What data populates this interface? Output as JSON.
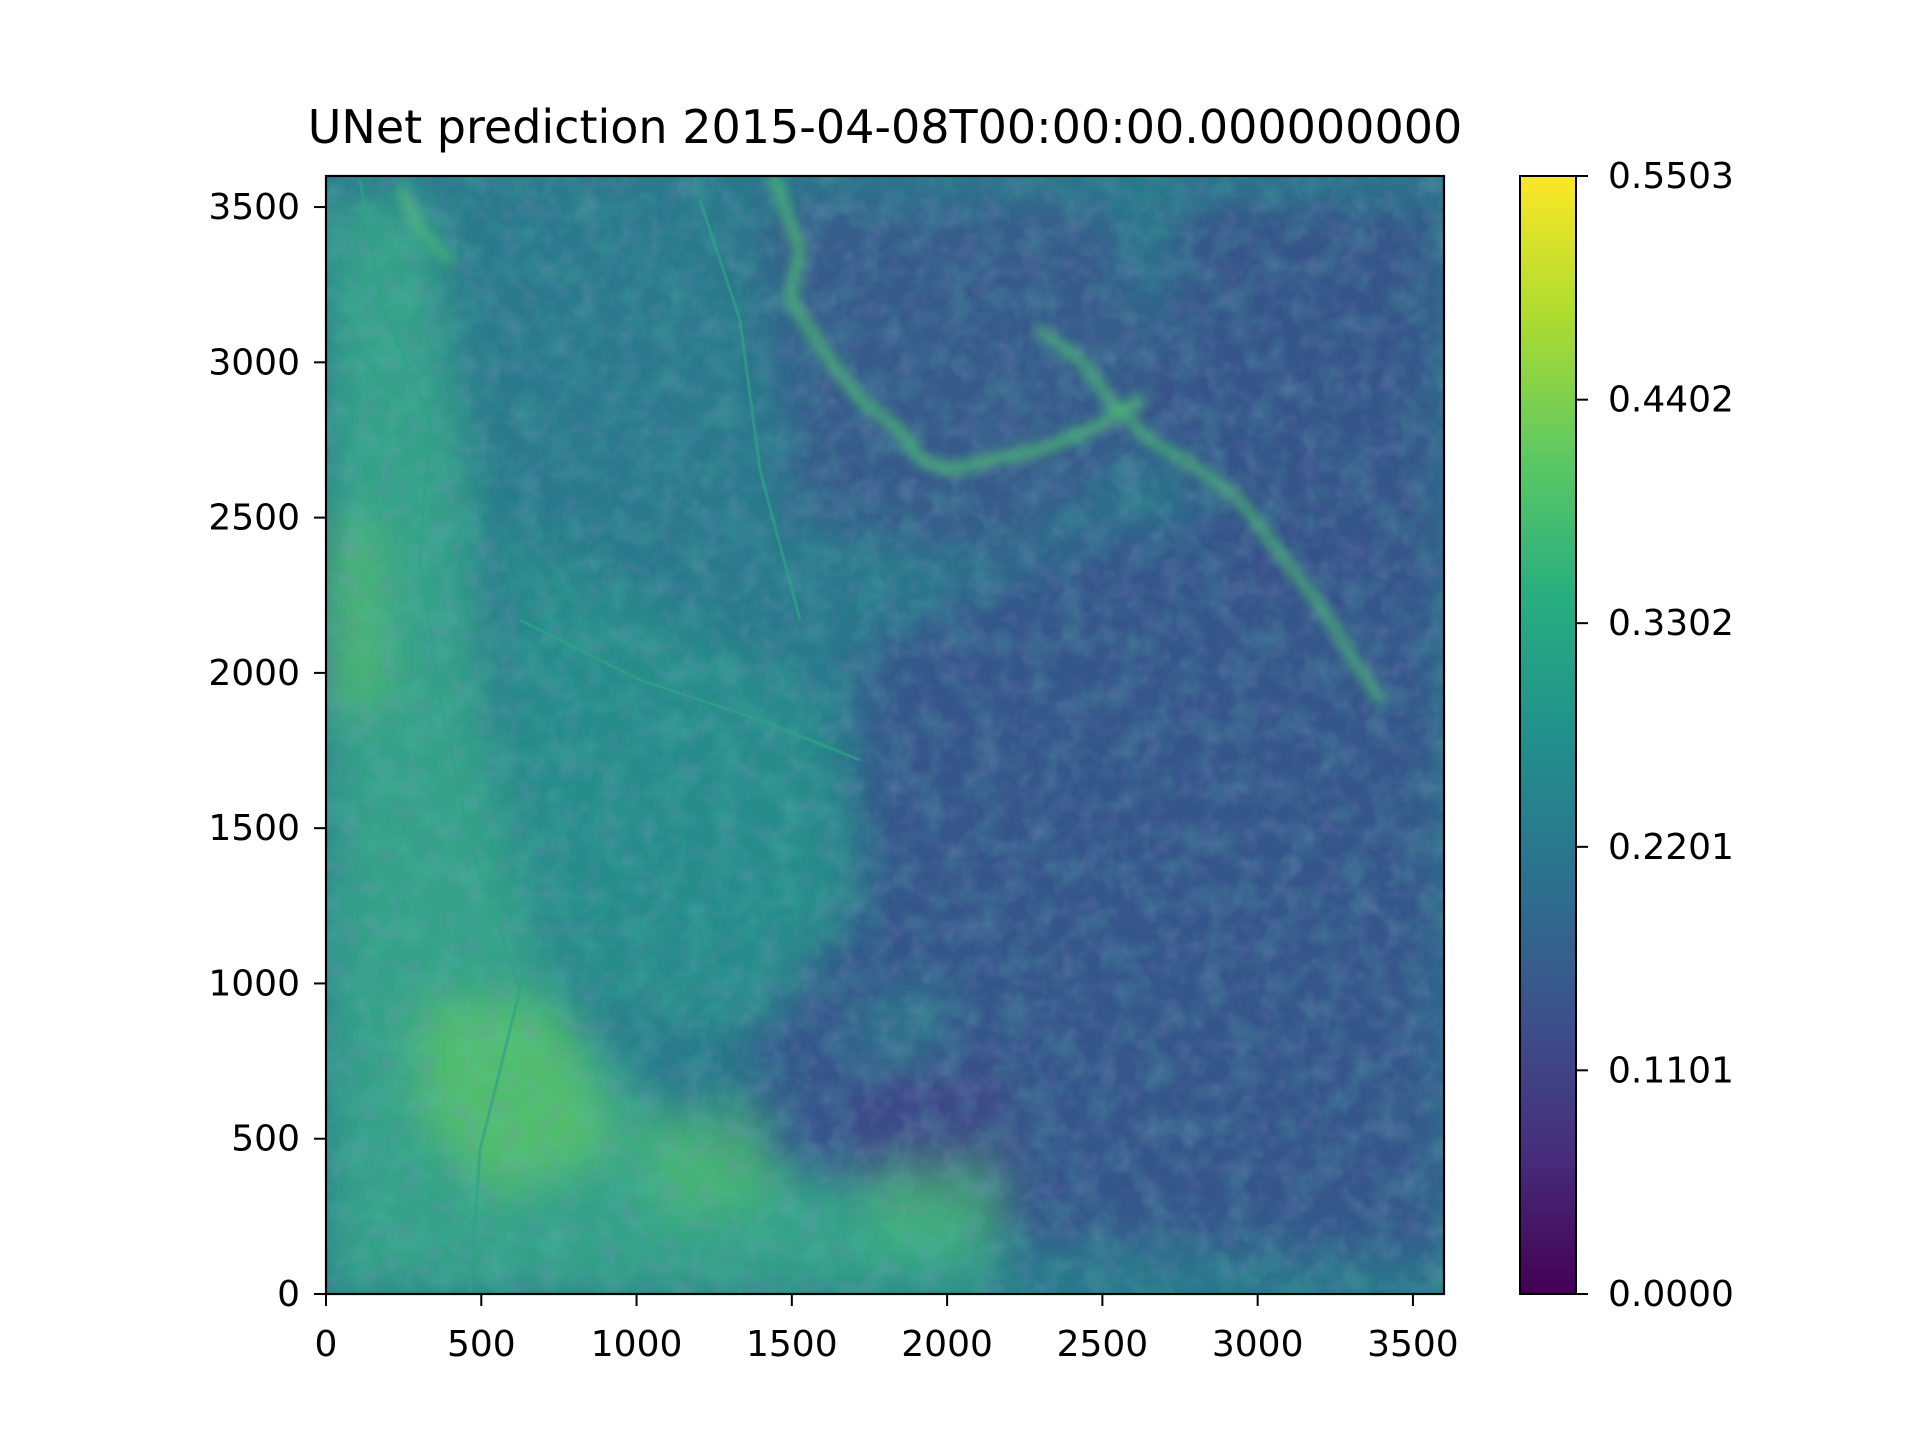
{
  "chart_data": {
    "type": "heatmap",
    "title": "UNet prediction 2015-04-08T00:00:00.000000000",
    "xlabel": "",
    "ylabel": "",
    "xlim": [
      0,
      3600
    ],
    "ylim": [
      0,
      3600
    ],
    "x_ticks": [
      "0",
      "500",
      "1000",
      "1500",
      "2000",
      "2500",
      "3000",
      "3500"
    ],
    "y_ticks": [
      "0",
      "500",
      "1000",
      "1500",
      "2000",
      "2500",
      "3000",
      "3500"
    ],
    "colormap": "viridis",
    "colorbar": {
      "vmin": 0.0,
      "vmax": 0.5503,
      "ticks": [
        "0.0000",
        "0.1101",
        "0.2201",
        "0.3302",
        "0.4402",
        "0.5503"
      ]
    },
    "grid": false,
    "colors": {
      "low": "#440154",
      "mid_low": "#3b528b",
      "mid": "#21918c",
      "mid_high": "#5ec962",
      "high": "#fde725"
    }
  }
}
